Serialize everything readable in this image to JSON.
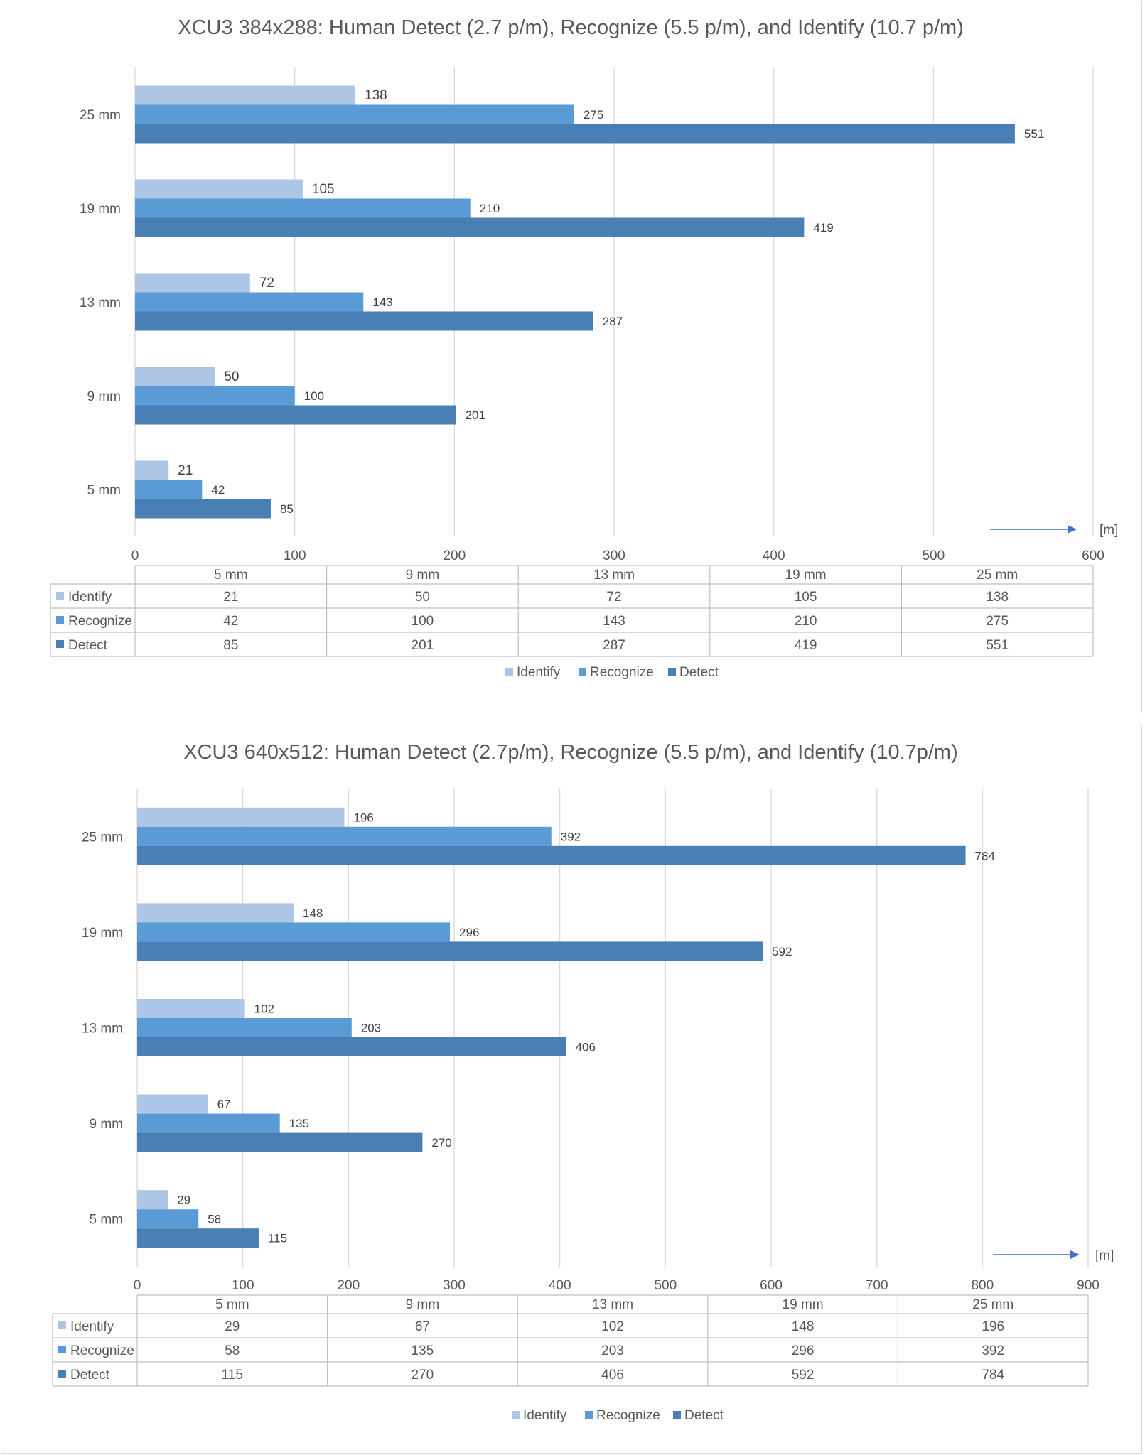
{
  "colors": {
    "identify": "#aec6e6",
    "recognize": "#5b9bd5",
    "detect": "#4a7fb5",
    "grid": "#d9d9d9",
    "arrow": "#4472c4"
  },
  "chart_data": [
    {
      "type": "bar",
      "orientation": "horizontal",
      "title": "XCU3 384x288: Human Detect (2.7 p/m), Recognize (5.5 p/m), and Identify (10.7 p/m)",
      "categories": [
        "5 mm",
        "9 mm",
        "13 mm",
        "19 mm",
        "25 mm"
      ],
      "series": [
        {
          "name": "Identify",
          "values": [
            21,
            50,
            72,
            105,
            138
          ]
        },
        {
          "name": "Recognize",
          "values": [
            42,
            100,
            143,
            210,
            275
          ]
        },
        {
          "name": "Detect",
          "values": [
            85,
            201,
            287,
            419,
            551
          ]
        }
      ],
      "xlim": [
        0,
        600
      ],
      "xticks": [
        "0",
        "100",
        "200",
        "300",
        "400",
        "500",
        "600"
      ],
      "unit_label": "[m]",
      "legend": [
        "Identify",
        "Recognize",
        "Detect"
      ],
      "legend_position": "bottom",
      "grid": true,
      "data_table": true
    },
    {
      "type": "bar",
      "orientation": "horizontal",
      "title": "XCU3 640x512: Human Detect (2.7p/m), Recognize (5.5 p/m), and Identify (10.7p/m)",
      "categories": [
        "5 mm",
        "9 mm",
        "13 mm",
        "19 mm",
        "25 mm"
      ],
      "series": [
        {
          "name": "Identify",
          "values": [
            29,
            67,
            102,
            148,
            196
          ]
        },
        {
          "name": "Recognize",
          "values": [
            58,
            135,
            203,
            296,
            392
          ]
        },
        {
          "name": "Detect",
          "values": [
            115,
            270,
            406,
            592,
            784
          ]
        }
      ],
      "xlim": [
        0,
        900
      ],
      "xticks": [
        "0",
        "100",
        "200",
        "300",
        "400",
        "500",
        "600",
        "700",
        "800",
        "900"
      ],
      "unit_label": "[m]",
      "legend": [
        "Identify",
        "Recognize",
        "Detect"
      ],
      "legend_position": "bottom",
      "grid": true,
      "data_table": true
    }
  ]
}
